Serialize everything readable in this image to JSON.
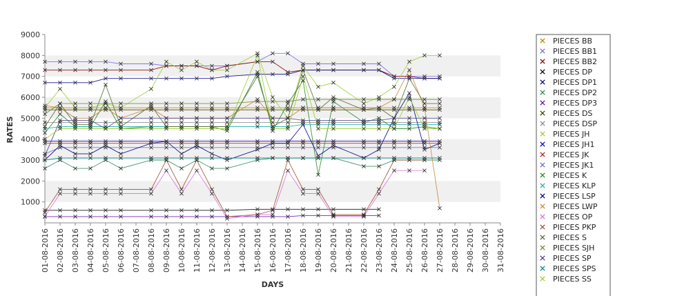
{
  "chart_data": {
    "type": "line",
    "title": "",
    "xlabel": "DAYS",
    "ylabel": "RATES",
    "ylim": [
      0,
      9000
    ],
    "yticks": [
      1000,
      2000,
      3000,
      4000,
      5000,
      6000,
      7000,
      8000,
      9000
    ],
    "grid": "alternating horizontal bands",
    "legend_position": "right",
    "x": [
      "01-08-2016",
      "02-08-2016",
      "03-08-2016",
      "04-08-2016",
      "05-08-2016",
      "06-08-2016",
      "07-08-2016",
      "08-08-2016",
      "09-08-2016",
      "10-08-2016",
      "11-08-2016",
      "12-08-2016",
      "13-08-2016",
      "14-08-2016",
      "15-08-2016",
      "16-08-2016",
      "17-08-2016",
      "18-08-2016",
      "19-08-2016",
      "20-08-2016",
      "21-08-2016",
      "22-08-2016",
      "23-08-2016",
      "24-08-2016",
      "25-08-2016",
      "26-08-2016",
      "27-08-2016",
      "28-08-2016",
      "29-08-2016",
      "30-08-2016",
      "31-08-2016"
    ],
    "series": [
      {
        "name": "PIECES BB",
        "color": "#b8860b",
        "values": [
          5500,
          5500,
          5500,
          5500,
          5500,
          5500,
          null,
          5500,
          5500,
          5500,
          5500,
          5500,
          5500,
          null,
          5500,
          5500,
          5500,
          5500,
          5500,
          5500,
          null,
          5500,
          5500,
          5500,
          5500,
          5500,
          5500,
          null,
          null,
          null,
          null
        ]
      },
      {
        "name": "PIECES BB1",
        "color": "#7b68ee",
        "values": [
          7700,
          7700,
          7700,
          7700,
          7700,
          7600,
          null,
          7600,
          7500,
          7500,
          7500,
          7500,
          7500,
          null,
          7700,
          8100,
          8100,
          7600,
          7600,
          7600,
          null,
          7600,
          7600,
          7000,
          7000,
          7000,
          7000,
          null,
          null,
          null,
          null
        ]
      },
      {
        "name": "PIECES BB2",
        "color": "#8b0000",
        "values": [
          7300,
          7300,
          7300,
          7300,
          7300,
          7300,
          null,
          7300,
          7500,
          7500,
          7500,
          7300,
          7500,
          null,
          7700,
          7700,
          7200,
          7300,
          7300,
          7300,
          null,
          7300,
          7300,
          7000,
          7000,
          6900,
          6900,
          null,
          null,
          null,
          null
        ]
      },
      {
        "name": "PIECES DP",
        "color": "#000000",
        "values": [
          600,
          600,
          600,
          600,
          600,
          600,
          null,
          600,
          600,
          600,
          600,
          600,
          600,
          null,
          650,
          650,
          650,
          650,
          650,
          650,
          null,
          650,
          650,
          null,
          null,
          null,
          null,
          null,
          null,
          null,
          null
        ]
      },
      {
        "name": "PIECES DP1",
        "color": "#00008b",
        "values": [
          6700,
          6700,
          6700,
          6700,
          6900,
          6900,
          null,
          6900,
          6900,
          6900,
          6900,
          6900,
          7000,
          null,
          7100,
          7100,
          7100,
          7300,
          7300,
          7300,
          null,
          7300,
          7300,
          6900,
          6900,
          6900,
          6900,
          null,
          null,
          null,
          null
        ]
      },
      {
        "name": "PIECES DP2",
        "color": "#2e8b57",
        "values": [
          2600,
          3000,
          2600,
          2600,
          3000,
          2600,
          null,
          3000,
          3000,
          2600,
          3000,
          2600,
          2600,
          null,
          3000,
          3100,
          3100,
          3100,
          3100,
          3100,
          null,
          2700,
          2700,
          3000,
          3000,
          3000,
          3000,
          null,
          null,
          null,
          null
        ]
      },
      {
        "name": "PIECES DP3",
        "color": "#6a0dad",
        "values": [
          300,
          300,
          300,
          300,
          300,
          300,
          null,
          300,
          300,
          300,
          300,
          300,
          300,
          null,
          300,
          300,
          300,
          350,
          350,
          350,
          null,
          350,
          350,
          null,
          null,
          null,
          null,
          null,
          null,
          null,
          null
        ]
      },
      {
        "name": "PIECES DS",
        "color": "#3d3d00",
        "values": [
          5400,
          5400,
          5400,
          5400,
          5400,
          5400,
          null,
          5400,
          5400,
          5400,
          5400,
          5400,
          5400,
          null,
          5400,
          5400,
          5400,
          5400,
          5400,
          5400,
          null,
          5400,
          5400,
          5400,
          5400,
          5400,
          5400,
          null,
          null,
          null,
          null
        ]
      },
      {
        "name": "PIECES DSP",
        "color": "#8a8a8a",
        "values": [
          4800,
          4800,
          4800,
          4800,
          4800,
          4800,
          null,
          4800,
          4800,
          4800,
          4800,
          4800,
          4800,
          null,
          4800,
          4800,
          4800,
          4800,
          4800,
          4800,
          null,
          4800,
          4800,
          4800,
          4800,
          4800,
          4800,
          null,
          null,
          null,
          null
        ]
      },
      {
        "name": "PIECES JH",
        "color": "#9acd32",
        "values": [
          5500,
          6400,
          5500,
          5500,
          5700,
          5500,
          null,
          6400,
          7700,
          7300,
          7700,
          7300,
          7300,
          null,
          8100,
          6000,
          5000,
          7500,
          6500,
          6700,
          null,
          5700,
          6000,
          6500,
          7700,
          8000,
          8000,
          null,
          null,
          null,
          null
        ]
      },
      {
        "name": "PIECES JH1",
        "color": "#0000cd",
        "values": [
          3900,
          3900,
          3900,
          3900,
          3900,
          3900,
          null,
          3900,
          3900,
          3900,
          3900,
          3900,
          3900,
          null,
          3900,
          3900,
          3900,
          3900,
          3900,
          3900,
          null,
          3900,
          3900,
          3900,
          3900,
          3900,
          3900,
          null,
          null,
          null,
          null
        ]
      },
      {
        "name": "PIECES JK",
        "color": "#b22222",
        "values": [
          3800,
          3800,
          3800,
          3800,
          3800,
          3800,
          null,
          3800,
          3800,
          3800,
          3800,
          3800,
          3800,
          null,
          3800,
          3800,
          3800,
          3800,
          3800,
          3800,
          null,
          3800,
          3800,
          3800,
          3800,
          3800,
          3800,
          null,
          null,
          null,
          null
        ]
      },
      {
        "name": "PIECES JK1",
        "color": "#6b6bd6",
        "values": [
          3300,
          3600,
          3600,
          3600,
          3600,
          3600,
          null,
          3600,
          3600,
          3600,
          3600,
          3600,
          3600,
          null,
          3600,
          3600,
          3600,
          3600,
          3600,
          3600,
          null,
          3600,
          3600,
          3600,
          3600,
          3600,
          3600,
          null,
          null,
          null,
          null
        ]
      },
      {
        "name": "PIECES K",
        "color": "#228b22",
        "values": [
          4300,
          5200,
          4600,
          4600,
          5800,
          4500,
          null,
          4600,
          4600,
          4600,
          4600,
          4600,
          4400,
          null,
          7200,
          4400,
          5700,
          6800,
          2300,
          5800,
          null,
          4800,
          5000,
          4500,
          4500,
          4600,
          4500,
          null,
          null,
          null,
          null
        ]
      },
      {
        "name": "PIECES KLP",
        "color": "#20b2aa",
        "values": [
          4500,
          4600,
          4600,
          4600,
          4600,
          4600,
          null,
          4600,
          4600,
          4600,
          4600,
          4600,
          4600,
          null,
          4600,
          4600,
          4600,
          4700,
          4700,
          4700,
          null,
          4700,
          4700,
          4700,
          4700,
          4700,
          4700,
          null,
          null,
          null,
          null
        ]
      },
      {
        "name": "PIECES LSP",
        "color": "#00008b",
        "values": [
          3000,
          3700,
          3300,
          3300,
          3700,
          3300,
          null,
          3800,
          3900,
          3300,
          3700,
          3300,
          3000,
          null,
          3500,
          3800,
          3800,
          4700,
          3200,
          3700,
          null,
          3100,
          3500,
          5000,
          6200,
          3500,
          3800,
          null,
          null,
          null,
          null
        ]
      },
      {
        "name": "PIECES LWP",
        "color": "#cd853f",
        "values": [
          5600,
          5500,
          5000,
          5000,
          5500,
          5000,
          null,
          5500,
          5000,
          5000,
          5000,
          5000,
          5000,
          null,
          5900,
          5000,
          5000,
          5500,
          5500,
          5500,
          null,
          5500,
          5500,
          5900,
          7300,
          5500,
          700,
          null,
          null,
          null,
          null
        ]
      },
      {
        "name": "PIECES OP",
        "color": "#da70d6",
        "values": [
          300,
          1400,
          1400,
          1400,
          1400,
          1400,
          null,
          1400,
          2500,
          1400,
          2500,
          1400,
          200,
          null,
          400,
          400,
          2500,
          1400,
          1400,
          300,
          null,
          300,
          1400,
          2500,
          2500,
          2500,
          null,
          null,
          null,
          null,
          null
        ]
      },
      {
        "name": "PIECES PKP",
        "color": "#a0522d",
        "values": [
          500,
          1600,
          1600,
          1600,
          1600,
          1600,
          null,
          1600,
          3000,
          1600,
          3000,
          1600,
          300,
          null,
          400,
          600,
          3000,
          1600,
          1600,
          400,
          null,
          400,
          1600,
          3000,
          3000,
          3000,
          null,
          null,
          null,
          null,
          null
        ]
      },
      {
        "name": "PIECES S",
        "color": "#556b2f",
        "values": [
          4600,
          5700,
          4700,
          4700,
          6600,
          4600,
          null,
          5600,
          4600,
          4600,
          4600,
          4600,
          4600,
          null,
          7000,
          4600,
          5000,
          7300,
          5400,
          6000,
          null,
          5400,
          5500,
          5000,
          6900,
          5700,
          5700,
          null,
          null,
          null,
          null
        ]
      },
      {
        "name": "PIECES SJH",
        "color": "#6b8e23",
        "values": [
          5200,
          5700,
          5700,
          5700,
          5700,
          5700,
          null,
          5700,
          5700,
          5700,
          5700,
          5700,
          5700,
          null,
          5800,
          5800,
          5800,
          5900,
          5900,
          5900,
          null,
          5900,
          5900,
          5900,
          5900,
          5900,
          5900,
          null,
          null,
          null,
          null
        ]
      },
      {
        "name": "PIECES SP",
        "color": "#483d8b",
        "values": [
          3200,
          4900,
          4900,
          4900,
          4500,
          5000,
          null,
          5000,
          5000,
          5000,
          5000,
          5000,
          5000,
          null,
          5000,
          5000,
          5000,
          4900,
          4900,
          4900,
          null,
          4900,
          4900,
          5000,
          5000,
          5000,
          5000,
          null,
          null,
          null,
          null
        ]
      },
      {
        "name": "PIECES SPS",
        "color": "#008b8b",
        "values": [
          3000,
          3100,
          3100,
          3100,
          3100,
          3100,
          null,
          3100,
          3100,
          3100,
          3100,
          3100,
          3100,
          null,
          3100,
          3100,
          3100,
          3100,
          3100,
          3100,
          null,
          3100,
          3100,
          3100,
          3100,
          3100,
          3100,
          null,
          null,
          null,
          null
        ]
      },
      {
        "name": "PIECES SS",
        "color": "#9acd32",
        "values": [
          4000,
          4500,
          4500,
          4500,
          4500,
          4500,
          null,
          4500,
          4500,
          4500,
          4500,
          4500,
          4500,
          null,
          8000,
          4500,
          4500,
          7000,
          4500,
          4500,
          null,
          4500,
          4500,
          4500,
          6000,
          4500,
          4500,
          null,
          null,
          null,
          null
        ]
      }
    ]
  }
}
